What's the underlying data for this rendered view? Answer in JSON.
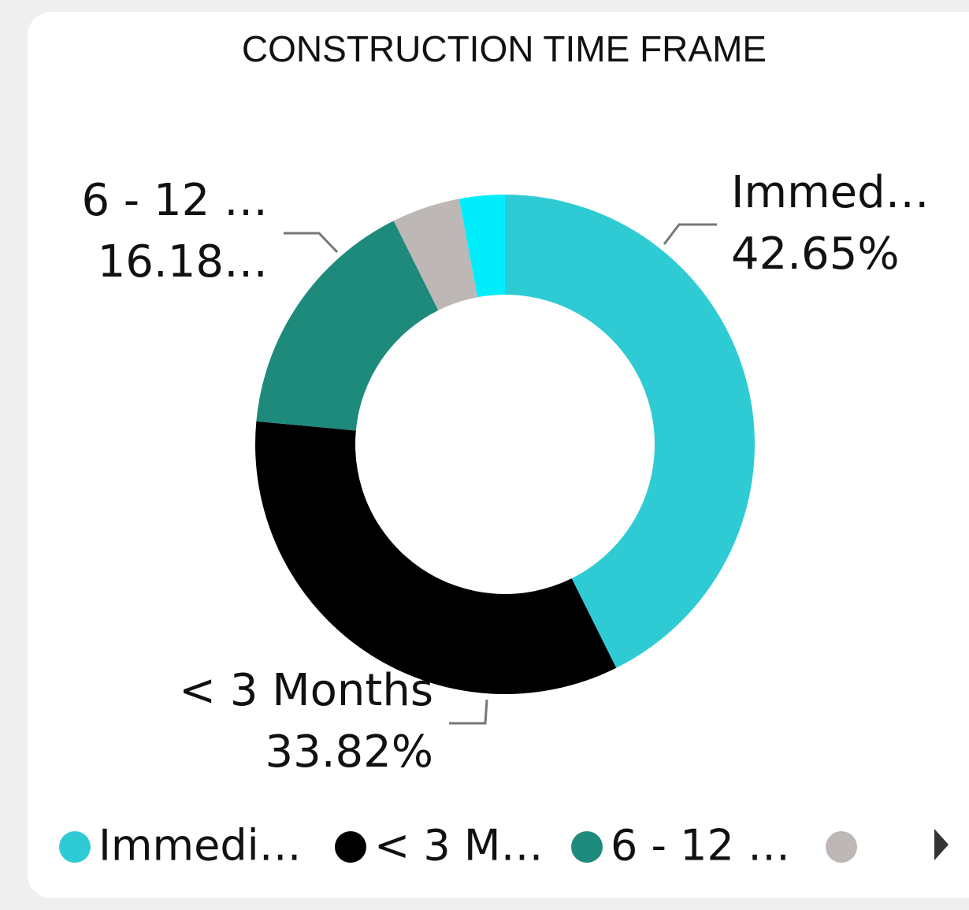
{
  "chart_data": {
    "type": "donut",
    "title": "CONSTRUCTION TIME FRAME",
    "categories": [
      "Immedi…",
      "< 3 M…",
      "6 - 12 …",
      null,
      null
    ],
    "slice_labels": [
      "Immed…",
      "< 3 Months",
      "6 - 12 …",
      null,
      null
    ],
    "values": [
      42.65,
      33.82,
      16.18,
      4.41,
      2.94
    ],
    "value_labels": [
      "42.65%",
      "33.82%",
      "16.18…",
      null,
      null
    ],
    "colors": [
      "#2ecbd4",
      "#000000",
      "#1e8a7c",
      "#bdb8b5",
      "#00eefc"
    ],
    "legend": "bottom"
  }
}
